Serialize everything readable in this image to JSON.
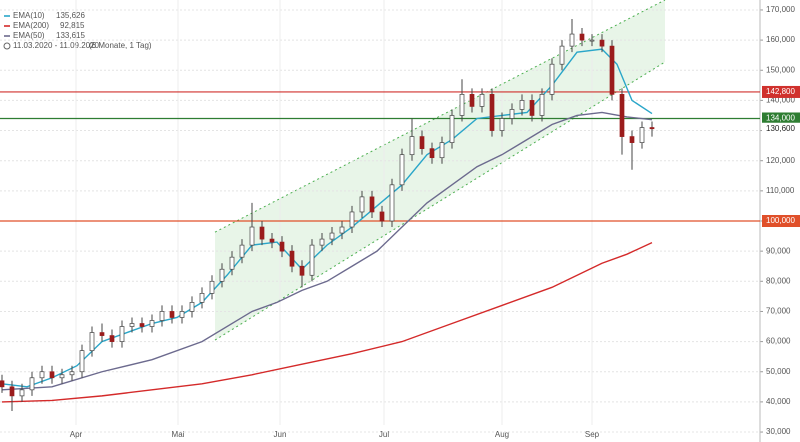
{
  "chart_data": {
    "type": "candlestick",
    "xlim": [
      0,
      152
    ],
    "ylim": [
      26700,
      173300
    ],
    "xticks": [
      {
        "value": 14.8,
        "label": "Apr"
      },
      {
        "value": 35.2,
        "label": "Mai"
      },
      {
        "value": 55.6,
        "label": "Jun"
      },
      {
        "value": 76.4,
        "label": "Jul"
      },
      {
        "value": 100,
        "label": "Aug"
      },
      {
        "value": 118,
        "label": "Sep"
      }
    ],
    "yticks": [
      {
        "value": 30000,
        "label": "30,000"
      },
      {
        "value": 40000,
        "label": "40,000"
      },
      {
        "value": 50000,
        "label": "50,000"
      },
      {
        "value": 60000,
        "label": "60,000"
      },
      {
        "value": 70000,
        "label": "70,000"
      },
      {
        "value": 80000,
        "label": "80,000"
      },
      {
        "value": 90000,
        "label": "90,000"
      },
      {
        "value": 100000,
        "label": "100,000"
      },
      {
        "value": 110000,
        "label": "110,000"
      },
      {
        "value": 120000,
        "label": "120,000"
      },
      {
        "value": 130000,
        "label": "130,000"
      },
      {
        "value": 140000,
        "label": "140,000"
      },
      {
        "value": 150000,
        "label": "150,000"
      },
      {
        "value": 160000,
        "label": "160,000"
      },
      {
        "value": 170000,
        "label": "170,000"
      }
    ],
    "grid": true,
    "period": "11.03.2020 - 11.09.2020",
    "period_note": "(6 Monate, 1 Tag)",
    "candles": {
      "x": [
        0,
        2,
        4,
        6,
        8,
        10,
        12,
        14,
        16,
        18,
        20,
        22,
        24,
        26,
        28,
        30,
        32,
        34,
        36,
        38,
        40,
        42,
        44,
        46,
        48,
        50,
        52,
        54,
        56,
        58,
        60,
        62,
        64,
        66,
        68,
        70,
        72,
        74,
        76,
        78,
        80,
        82,
        84,
        86,
        88,
        90,
        92,
        94,
        96,
        98,
        100,
        102,
        104,
        106,
        108,
        110,
        112,
        114,
        116,
        118,
        120,
        122,
        124,
        126,
        128,
        130
      ],
      "open": [
        47000,
        45000,
        42000,
        44000,
        48000,
        50000,
        48000,
        49000,
        50000,
        57000,
        63000,
        62000,
        60000,
        65000,
        66000,
        65000,
        67000,
        70000,
        68000,
        70000,
        73000,
        76000,
        80000,
        84000,
        88000,
        92000,
        98000,
        94000,
        93000,
        90000,
        85000,
        82000,
        92000,
        94000,
        96000,
        98000,
        103000,
        108000,
        103000,
        100000,
        112000,
        122000,
        128000,
        124000,
        121000,
        126000,
        135000,
        142000,
        138000,
        142000,
        130000,
        134000,
        137000,
        140000,
        135000,
        142000,
        152000,
        158000,
        162000,
        160000,
        160000,
        158000,
        142000,
        128000,
        126000,
        131000
      ],
      "high": [
        49000,
        47000,
        46000,
        50000,
        52000,
        52000,
        51000,
        52000,
        59000,
        65000,
        66000,
        64000,
        67000,
        68000,
        68000,
        69000,
        72000,
        72000,
        72000,
        75000,
        78000,
        82000,
        86000,
        90000,
        94000,
        106000,
        100000,
        96000,
        95000,
        92000,
        87000,
        94000,
        96000,
        98000,
        100000,
        105000,
        110000,
        110000,
        105000,
        114000,
        124000,
        134000,
        130000,
        126000,
        128000,
        137000,
        147000,
        144000,
        144000,
        144000,
        136000,
        139000,
        142000,
        142000,
        144000,
        154000,
        160000,
        167000,
        164000,
        162000,
        162000,
        160000,
        144000,
        130000,
        133000,
        133000
      ],
      "low": [
        43000,
        37000,
        40000,
        42000,
        46000,
        46000,
        46000,
        47000,
        48000,
        55000,
        60000,
        58000,
        58000,
        63000,
        63000,
        63000,
        65000,
        66000,
        66000,
        68000,
        71000,
        74000,
        78000,
        82000,
        86000,
        90000,
        92000,
        91000,
        88000,
        83000,
        78000,
        80000,
        90000,
        92000,
        94000,
        96000,
        101000,
        101000,
        98000,
        98000,
        110000,
        120000,
        122000,
        119000,
        119000,
        124000,
        133000,
        136000,
        136000,
        128000,
        128000,
        132000,
        135000,
        133000,
        133000,
        140000,
        150000,
        156000,
        158000,
        158000,
        156000,
        140000,
        122000,
        117000,
        124000,
        128000
      ],
      "close": [
        45000,
        42000,
        44000,
        48000,
        50000,
        48000,
        49000,
        50000,
        57000,
        63000,
        62000,
        60000,
        65000,
        66000,
        65000,
        67000,
        70000,
        68000,
        70000,
        73000,
        76000,
        80000,
        84000,
        88000,
        92000,
        98000,
        94000,
        93000,
        90000,
        85000,
        82000,
        92000,
        94000,
        96000,
        98000,
        103000,
        108000,
        103000,
        100000,
        112000,
        122000,
        128000,
        124000,
        121000,
        126000,
        135000,
        142000,
        138000,
        142000,
        130000,
        134000,
        137000,
        140000,
        135000,
        142000,
        152000,
        158000,
        162000,
        160000,
        160000,
        158000,
        142000,
        128000,
        126000,
        131000,
        130600
      ],
      "last_label": "130,600",
      "up_color": "#ffffff",
      "down_color": "#9b1c1c",
      "outline_color": "#444444"
    },
    "series": [
      {
        "name": "EMA(10)",
        "value_label": "135,626",
        "color": "#2aa6c9",
        "x": [
          0,
          5,
          10,
          15,
          20,
          25,
          30,
          35,
          40,
          45,
          50,
          55,
          60,
          65,
          70,
          75,
          80,
          85,
          90,
          95,
          100,
          105,
          110,
          115,
          120,
          123,
          126,
          130
        ],
        "values": [
          46000,
          45000,
          48000,
          52000,
          60000,
          63000,
          66000,
          68000,
          73000,
          82000,
          92000,
          93000,
          84000,
          92000,
          98000,
          105000,
          112000,
          122000,
          127000,
          134000,
          135000,
          136000,
          145000,
          156000,
          157000,
          152000,
          140000,
          135626
        ]
      },
      {
        "name": "EMA(200)",
        "value_label": "92,815",
        "color": "#d42a2a",
        "x": [
          0,
          10,
          20,
          30,
          40,
          50,
          60,
          70,
          80,
          90,
          100,
          110,
          120,
          125,
          130
        ],
        "values": [
          40000,
          40500,
          42000,
          44000,
          46000,
          49000,
          52500,
          56000,
          60000,
          66000,
          72000,
          78000,
          86000,
          89000,
          92815
        ]
      },
      {
        "name": "EMA(50)",
        "value_label": "133,615",
        "color": "#6c6a8e",
        "x": [
          0,
          10,
          20,
          30,
          40,
          50,
          55,
          60,
          65,
          70,
          75,
          80,
          85,
          90,
          95,
          100,
          105,
          110,
          115,
          120,
          125,
          130
        ],
        "values": [
          44000,
          45000,
          50000,
          54000,
          60000,
          70000,
          73000,
          77000,
          80000,
          85000,
          90000,
          98000,
          106000,
          112000,
          118000,
          122000,
          127000,
          132000,
          135000,
          136000,
          134500,
          133615
        ]
      }
    ],
    "levels": [
      {
        "value": 142800,
        "label": "142,800",
        "color": "#d0312d"
      },
      {
        "value": 134000,
        "label": "134,000",
        "color": "#2e7d32"
      },
      {
        "value": 100000,
        "label": "100,000",
        "color": "#e0502a"
      }
    ],
    "channel": {
      "x": [
        42.6,
        132.6
      ],
      "upper": [
        96300,
        173300
      ],
      "lower": [
        60500,
        152750
      ],
      "color": "#4caf50"
    }
  }
}
